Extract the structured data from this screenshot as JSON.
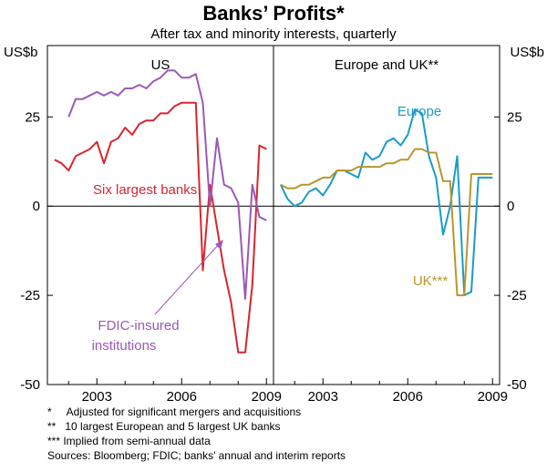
{
  "chart_data": {
    "type": "line",
    "title": "Banks’ Profits*",
    "subtitle": "After tax and minority interests, quarterly",
    "y_unit_left": "US$b",
    "y_unit_right": "US$b",
    "ylim": [
      -50,
      45
    ],
    "yticks": [
      -50,
      -25,
      0,
      25
    ],
    "ytick_labels": [
      "-50",
      "-25",
      "0",
      "25"
    ],
    "grid": "horizontal zero line only",
    "panels": [
      {
        "title": "US",
        "xlim": [
          2001.25,
          2009.25
        ],
        "xticks": [
          2003,
          2006,
          2009
        ],
        "xtick_labels": [
          "2003",
          "2006",
          "2009"
        ],
        "series": [
          {
            "name": "Six largest banks",
            "color": "#d7262e",
            "x": [
              2001.5,
              2001.75,
              2002.0,
              2002.25,
              2002.5,
              2002.75,
              2003.0,
              2003.25,
              2003.5,
              2003.75,
              2004.0,
              2004.25,
              2004.5,
              2004.75,
              2005.0,
              2005.25,
              2005.5,
              2005.75,
              2006.0,
              2006.25,
              2006.5,
              2006.75,
              2007.0,
              2007.25,
              2007.5,
              2007.75,
              2008.0,
              2008.25,
              2008.5,
              2008.75,
              2009.0
            ],
            "y": [
              13,
              12,
              10,
              14,
              15,
              16,
              18,
              12,
              18,
              19,
              22,
              20,
              23,
              24,
              24,
              26,
              26,
              28,
              29,
              29,
              29,
              -18,
              6,
              -6,
              -18,
              -27,
              -41,
              -41,
              -22,
              17,
              16
            ]
          },
          {
            "name": "FDIC-insured institutions",
            "color": "#9b59b6",
            "x": [
              2002.0,
              2002.25,
              2002.5,
              2002.75,
              2003.0,
              2003.25,
              2003.5,
              2003.75,
              2004.0,
              2004.25,
              2004.5,
              2004.75,
              2005.0,
              2005.25,
              2005.5,
              2005.75,
              2006.0,
              2006.25,
              2006.5,
              2006.75,
              2007.0,
              2007.25,
              2007.5,
              2007.75,
              2008.0,
              2008.25,
              2008.5,
              2008.75,
              2009.0
            ],
            "y": [
              25,
              30,
              30,
              31,
              32,
              31,
              32,
              31,
              33,
              33,
              34,
              33,
              35,
              36,
              38,
              38,
              36,
              36,
              37,
              29,
              0,
              19,
              6,
              5,
              1,
              -26,
              6,
              -3,
              -4
            ]
          }
        ]
      },
      {
        "title": "Europe and UK**",
        "xlim": [
          2001.25,
          2009.25
        ],
        "xticks": [
          2003,
          2006,
          2009
        ],
        "xtick_labels": [
          "2003",
          "2006",
          "2009"
        ],
        "series": [
          {
            "name": "Europe",
            "color": "#1a9bc7",
            "x": [
              2001.5,
              2001.75,
              2002.0,
              2002.25,
              2002.5,
              2002.75,
              2003.0,
              2003.25,
              2003.5,
              2003.75,
              2004.0,
              2004.25,
              2004.5,
              2004.75,
              2005.0,
              2005.25,
              2005.5,
              2005.75,
              2006.0,
              2006.25,
              2006.5,
              2006.75,
              2007.0,
              2007.25,
              2007.5,
              2007.75,
              2008.0,
              2008.25,
              2008.5,
              2008.75,
              2009.0
            ],
            "y": [
              6,
              2,
              0,
              1,
              4,
              5,
              3,
              6,
              10,
              10,
              9,
              8,
              15,
              13,
              14,
              18,
              19,
              17,
              20,
              27,
              26,
              14,
              8,
              -8,
              0,
              14,
              -25,
              -24,
              8,
              8,
              8
            ]
          },
          {
            "name": "UK***",
            "color": "#b8962e",
            "x": [
              2001.5,
              2001.75,
              2002.0,
              2002.25,
              2002.5,
              2002.75,
              2003.0,
              2003.25,
              2003.5,
              2003.75,
              2004.0,
              2004.25,
              2004.5,
              2004.75,
              2005.0,
              2005.25,
              2005.5,
              2005.75,
              2006.0,
              2006.25,
              2006.5,
              2006.75,
              2007.0,
              2007.25,
              2007.5,
              2007.75,
              2008.0,
              2008.25,
              2008.5,
              2008.75,
              2009.0
            ],
            "y": [
              6,
              5,
              5,
              6,
              6,
              7,
              8,
              8,
              10,
              10,
              10,
              11,
              11,
              11,
              11,
              12,
              12,
              13,
              13,
              16,
              16,
              15,
              15,
              7,
              7,
              -25,
              -25,
              9,
              9,
              9,
              9
            ]
          }
        ]
      }
    ],
    "annotations": [
      {
        "text": "Six largest banks",
        "series": "Six largest banks"
      },
      {
        "text": "FDIC-insured",
        "series": "FDIC-insured institutions"
      },
      {
        "text": "institutions",
        "series": "FDIC-insured institutions"
      },
      {
        "text": "Europe",
        "series": "Europe"
      },
      {
        "text": "UK***",
        "series": "UK***"
      }
    ]
  },
  "footnotes": [
    "*     Adjusted for significant mergers and acquisitions",
    "**   10 largest European and 5 largest UK banks",
    "*** Implied from semi-annual data",
    "Sources: Bloomberg; FDIC; banks’ annual and interim reports"
  ]
}
